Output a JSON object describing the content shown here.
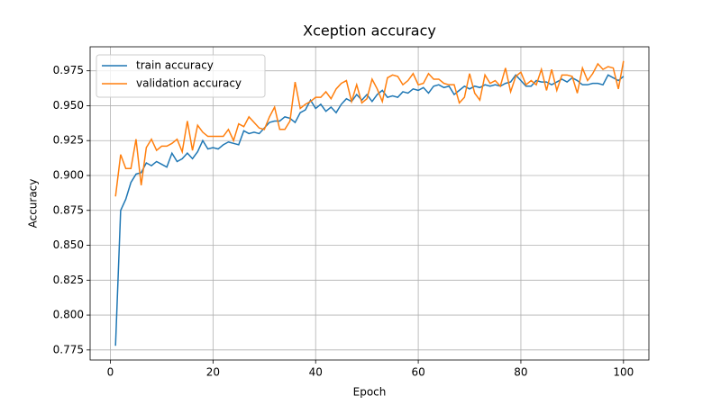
{
  "chart_data": {
    "type": "line",
    "title": "Xception accuracy",
    "xlabel": "Epoch",
    "ylabel": "Accuracy",
    "x": [
      1,
      2,
      3,
      4,
      5,
      6,
      7,
      8,
      9,
      10,
      11,
      12,
      13,
      14,
      15,
      16,
      17,
      18,
      19,
      20,
      21,
      22,
      23,
      24,
      25,
      26,
      27,
      28,
      29,
      30,
      31,
      32,
      33,
      34,
      35,
      36,
      37,
      38,
      39,
      40,
      41,
      42,
      43,
      44,
      45,
      46,
      47,
      48,
      49,
      50,
      51,
      52,
      53,
      54,
      55,
      56,
      57,
      58,
      59,
      60,
      61,
      62,
      63,
      64,
      65,
      66,
      67,
      68,
      69,
      70,
      71,
      72,
      73,
      74,
      75,
      76,
      77,
      78,
      79,
      80,
      81,
      82,
      83,
      84,
      85,
      86,
      87,
      88,
      89,
      90,
      91,
      92,
      93,
      94,
      95,
      96,
      97,
      98,
      99,
      100
    ],
    "series": [
      {
        "name": "train accuracy",
        "color": "#1f77b4",
        "values": [
          0.778,
          0.875,
          0.883,
          0.895,
          0.901,
          0.902,
          0.909,
          0.907,
          0.91,
          0.908,
          0.906,
          0.916,
          0.91,
          0.912,
          0.916,
          0.912,
          0.917,
          0.925,
          0.919,
          0.92,
          0.919,
          0.922,
          0.924,
          0.923,
          0.922,
          0.932,
          0.93,
          0.931,
          0.93,
          0.934,
          0.938,
          0.939,
          0.939,
          0.942,
          0.941,
          0.938,
          0.945,
          0.947,
          0.954,
          0.948,
          0.951,
          0.946,
          0.949,
          0.945,
          0.951,
          0.955,
          0.953,
          0.958,
          0.954,
          0.958,
          0.953,
          0.958,
          0.961,
          0.956,
          0.957,
          0.956,
          0.96,
          0.959,
          0.962,
          0.961,
          0.963,
          0.959,
          0.964,
          0.965,
          0.963,
          0.964,
          0.958,
          0.961,
          0.964,
          0.962,
          0.964,
          0.963,
          0.965,
          0.964,
          0.965,
          0.964,
          0.966,
          0.967,
          0.972,
          0.968,
          0.964,
          0.964,
          0.968,
          0.967,
          0.967,
          0.965,
          0.967,
          0.969,
          0.967,
          0.97,
          0.968,
          0.965,
          0.965,
          0.966,
          0.966,
          0.965,
          0.972,
          0.97,
          0.968,
          0.971
        ]
      },
      {
        "name": "validation accuracy",
        "color": "#ff7f0e",
        "values": [
          0.885,
          0.915,
          0.905,
          0.905,
          0.926,
          0.893,
          0.92,
          0.926,
          0.918,
          0.921,
          0.921,
          0.923,
          0.926,
          0.917,
          0.939,
          0.918,
          0.936,
          0.931,
          0.928,
          0.928,
          0.928,
          0.928,
          0.933,
          0.925,
          0.937,
          0.935,
          0.942,
          0.938,
          0.934,
          0.933,
          0.942,
          0.949,
          0.933,
          0.933,
          0.939,
          0.967,
          0.948,
          0.951,
          0.953,
          0.956,
          0.956,
          0.96,
          0.955,
          0.962,
          0.966,
          0.968,
          0.953,
          0.965,
          0.952,
          0.955,
          0.969,
          0.962,
          0.953,
          0.97,
          0.972,
          0.971,
          0.965,
          0.968,
          0.973,
          0.965,
          0.966,
          0.973,
          0.969,
          0.969,
          0.966,
          0.965,
          0.965,
          0.952,
          0.956,
          0.973,
          0.959,
          0.954,
          0.972,
          0.966,
          0.968,
          0.964,
          0.977,
          0.96,
          0.971,
          0.974,
          0.965,
          0.968,
          0.965,
          0.976,
          0.961,
          0.976,
          0.961,
          0.972,
          0.972,
          0.971,
          0.959,
          0.977,
          0.968,
          0.973,
          0.98,
          0.976,
          0.978,
          0.977,
          0.962,
          0.982
        ]
      }
    ],
    "xlim": [
      -3.95,
      104.95
    ],
    "ylim": [
      0.7678,
      0.9922
    ],
    "xticks": [
      0,
      20,
      40,
      60,
      80,
      100
    ],
    "yticks": [
      0.775,
      {
        "value": 0.8,
        "label": "0.800"
      },
      0.825,
      {
        "value": 0.85,
        "label": "0.850"
      },
      0.875,
      {
        "value": 0.9,
        "label": "0.900"
      },
      0.925,
      {
        "value": 0.95,
        "label": "0.950"
      },
      0.975
    ],
    "grid": true,
    "legend": "upper left"
  }
}
